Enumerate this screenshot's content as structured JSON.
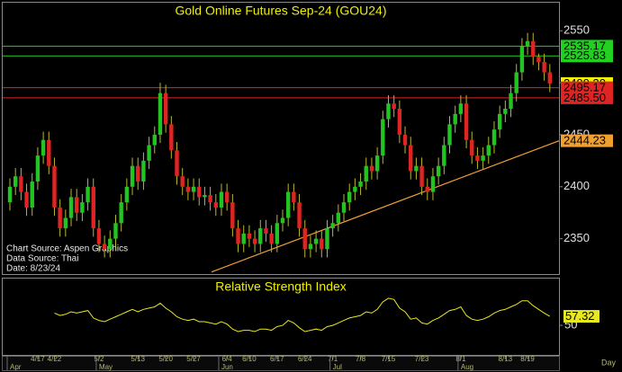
{
  "chart_data": [
    {
      "type": "candlestick",
      "title": "Gold Online Futures Sep-24 (GOU24)",
      "sources": [
        "Chart Source: Aspen Graphics",
        "Data Source: Thai",
        "Date: 8/23/24"
      ],
      "x_label": "Day",
      "categories": [
        null,
        null,
        null,
        null,
        null,
        "4/17",
        null,
        null,
        "4/22",
        null,
        null,
        null,
        null,
        null,
        null,
        null,
        "5/2",
        null,
        null,
        null,
        null,
        null,
        null,
        "5/13",
        null,
        null,
        null,
        null,
        "5/20",
        null,
        null,
        null,
        null,
        "5/27",
        null,
        null,
        null,
        null,
        null,
        "6/4",
        null,
        null,
        null,
        "6/10",
        null,
        null,
        null,
        null,
        "6/17",
        null,
        null,
        null,
        null,
        "6/24",
        null,
        null,
        null,
        null,
        "7/1",
        null,
        null,
        null,
        null,
        "7/8",
        null,
        null,
        null,
        null,
        "7/15",
        null,
        null,
        null,
        null,
        null,
        "7/23",
        null,
        null,
        null,
        null,
        null,
        null,
        "8/1",
        null,
        null,
        null,
        null,
        null,
        null,
        null,
        "8/13",
        null,
        null,
        null,
        "8/19",
        null,
        null,
        null,
        null
      ],
      "months": [
        "Apr",
        null,
        null,
        null,
        null,
        null,
        null,
        null,
        null,
        null,
        null,
        null,
        null,
        null,
        null,
        null,
        "May",
        null,
        null,
        null,
        null,
        null,
        null,
        null,
        null,
        null,
        null,
        null,
        null,
        null,
        null,
        null,
        null,
        null,
        null,
        null,
        null,
        null,
        "Jun",
        null,
        null,
        null,
        null,
        null,
        null,
        null,
        null,
        null,
        null,
        null,
        null,
        null,
        null,
        null,
        null,
        null,
        null,
        null,
        "Jul",
        null,
        null,
        null,
        null,
        null,
        null,
        null,
        null,
        null,
        null,
        null,
        null,
        null,
        null,
        null,
        null,
        null,
        null,
        null,
        null,
        null,
        null,
        "Aug",
        null,
        null,
        null,
        null,
        null,
        null,
        null,
        null,
        null,
        null,
        null,
        null,
        null,
        null,
        null,
        null
      ],
      "open": [
        2385,
        2400,
        2410,
        2395,
        2380,
        2405,
        2430,
        2445,
        2420,
        2380,
        2360,
        2370,
        2390,
        2375,
        2385,
        2400,
        2360,
        2345,
        2340,
        2350,
        2365,
        2385,
        2400,
        2420,
        2405,
        2425,
        2440,
        2450,
        2490,
        2460,
        2435,
        2410,
        2400,
        2395,
        2400,
        2390,
        2392,
        2385,
        2380,
        2395,
        2385,
        2360,
        2345,
        2355,
        2350,
        2345,
        2360,
        2355,
        2345,
        2365,
        2370,
        2395,
        2385,
        2360,
        2340,
        2345,
        2350,
        2340,
        2360,
        2365,
        2375,
        2385,
        2395,
        2400,
        2405,
        2420,
        2415,
        2430,
        2465,
        2480,
        2475,
        2450,
        2440,
        2415,
        2420,
        2400,
        2395,
        2410,
        2420,
        2440,
        2460,
        2470,
        2480,
        2445,
        2430,
        2425,
        2430,
        2440,
        2455,
        2470,
        2475,
        2490,
        2510,
        2535,
        2540,
        2525,
        2520,
        2510
      ],
      "high": [
        2408,
        2418,
        2418,
        2403,
        2413,
        2438,
        2453,
        2453,
        2428,
        2388,
        2378,
        2398,
        2398,
        2393,
        2408,
        2408,
        2368,
        2353,
        2358,
        2373,
        2393,
        2408,
        2428,
        2428,
        2433,
        2448,
        2458,
        2500,
        2498,
        2468,
        2443,
        2418,
        2408,
        2408,
        2408,
        2400,
        2400,
        2393,
        2403,
        2403,
        2393,
        2368,
        2363,
        2363,
        2358,
        2368,
        2368,
        2363,
        2373,
        2378,
        2403,
        2403,
        2393,
        2368,
        2353,
        2358,
        2358,
        2368,
        2373,
        2383,
        2393,
        2403,
        2408,
        2413,
        2428,
        2428,
        2438,
        2473,
        2488,
        2488,
        2483,
        2458,
        2448,
        2428,
        2428,
        2408,
        2418,
        2428,
        2448,
        2468,
        2478,
        2488,
        2488,
        2453,
        2438,
        2438,
        2448,
        2463,
        2478,
        2483,
        2498,
        2518,
        2543,
        2548,
        2548,
        2528,
        2528,
        2518
      ],
      "low": [
        2377,
        2392,
        2387,
        2372,
        2372,
        2397,
        2422,
        2412,
        2372,
        2352,
        2352,
        2362,
        2367,
        2367,
        2377,
        2352,
        2337,
        2332,
        2332,
        2342,
        2357,
        2377,
        2392,
        2397,
        2397,
        2417,
        2432,
        2442,
        2452,
        2427,
        2402,
        2392,
        2387,
        2387,
        2382,
        2382,
        2377,
        2372,
        2372,
        2377,
        2352,
        2337,
        2337,
        2342,
        2337,
        2337,
        2347,
        2337,
        2337,
        2357,
        2362,
        2377,
        2352,
        2332,
        2332,
        2337,
        2332,
        2332,
        2352,
        2357,
        2367,
        2377,
        2387,
        2392,
        2397,
        2407,
        2407,
        2422,
        2457,
        2467,
        2442,
        2432,
        2407,
        2407,
        2392,
        2387,
        2387,
        2402,
        2412,
        2432,
        2452,
        2462,
        2437,
        2422,
        2417,
        2417,
        2422,
        2432,
        2447,
        2462,
        2467,
        2482,
        2502,
        2527,
        2517,
        2512,
        2502,
        2491
      ],
      "close": [
        2400,
        2410,
        2395,
        2380,
        2405,
        2430,
        2445,
        2420,
        2380,
        2360,
        2370,
        2390,
        2375,
        2385,
        2400,
        2360,
        2345,
        2340,
        2350,
        2365,
        2385,
        2400,
        2420,
        2405,
        2425,
        2440,
        2450,
        2490,
        2460,
        2435,
        2410,
        2400,
        2395,
        2400,
        2390,
        2392,
        2385,
        2380,
        2395,
        2385,
        2360,
        2345,
        2355,
        2350,
        2345,
        2360,
        2355,
        2345,
        2365,
        2370,
        2395,
        2385,
        2360,
        2340,
        2345,
        2350,
        2340,
        2360,
        2365,
        2375,
        2385,
        2395,
        2400,
        2405,
        2420,
        2415,
        2430,
        2465,
        2480,
        2475,
        2450,
        2440,
        2415,
        2420,
        2400,
        2395,
        2410,
        2420,
        2440,
        2460,
        2470,
        2480,
        2445,
        2430,
        2425,
        2430,
        2440,
        2455,
        2470,
        2475,
        2490,
        2510,
        2535,
        2540,
        2525,
        2520,
        2510,
        2499.3
      ],
      "up_color": "#22c422",
      "down_color": "#e02424",
      "wick_color": "#b8b830",
      "ylim": [
        2316,
        2577
      ],
      "yticks": [
        2350,
        2400,
        2450,
        2500,
        2550
      ],
      "levels": [
        {
          "value": 2535.17,
          "color": "#22d022",
          "line": true
        },
        {
          "value": 2525.83,
          "color": "#22d022",
          "line": true
        },
        {
          "value": 2499.3,
          "label": "2499.30",
          "color": "#f0f000",
          "line": false
        },
        {
          "value": 2495.17,
          "color": "#e02424",
          "line": true
        },
        {
          "value": 2485.5,
          "label": "2485.50",
          "color": "#e02424",
          "line": true
        },
        {
          "value": 2444.23,
          "color": "#f0a030",
          "line": false
        }
      ],
      "trendline": {
        "values": [
          2318,
          2444.23
        ],
        "color": "#f0a030"
      }
    },
    {
      "type": "line",
      "title": "Relative Strength Index",
      "color": "#e8e820",
      "values": [
        null,
        null,
        null,
        null,
        null,
        null,
        null,
        null,
        60,
        58,
        59,
        61,
        60,
        61,
        62,
        56,
        54,
        53,
        55,
        57,
        59,
        61,
        63,
        61,
        63,
        64,
        65,
        68,
        64,
        61,
        57,
        55,
        54,
        55,
        53,
        53,
        52,
        51,
        53,
        51,
        47,
        45,
        46,
        46,
        45,
        47,
        47,
        46,
        49,
        50,
        54,
        52,
        48,
        45,
        46,
        47,
        46,
        49,
        50,
        52,
        54,
        56,
        57,
        58,
        61,
        60,
        63,
        69,
        72,
        71,
        64,
        61,
        55,
        56,
        52,
        51,
        54,
        56,
        59,
        62,
        63,
        65,
        58,
        55,
        54,
        55,
        57,
        60,
        62,
        63,
        65,
        67,
        70,
        70,
        66,
        63,
        60,
        57.32
      ],
      "ylim": [
        26,
        88
      ],
      "yticks": [
        50
      ]
    }
  ]
}
